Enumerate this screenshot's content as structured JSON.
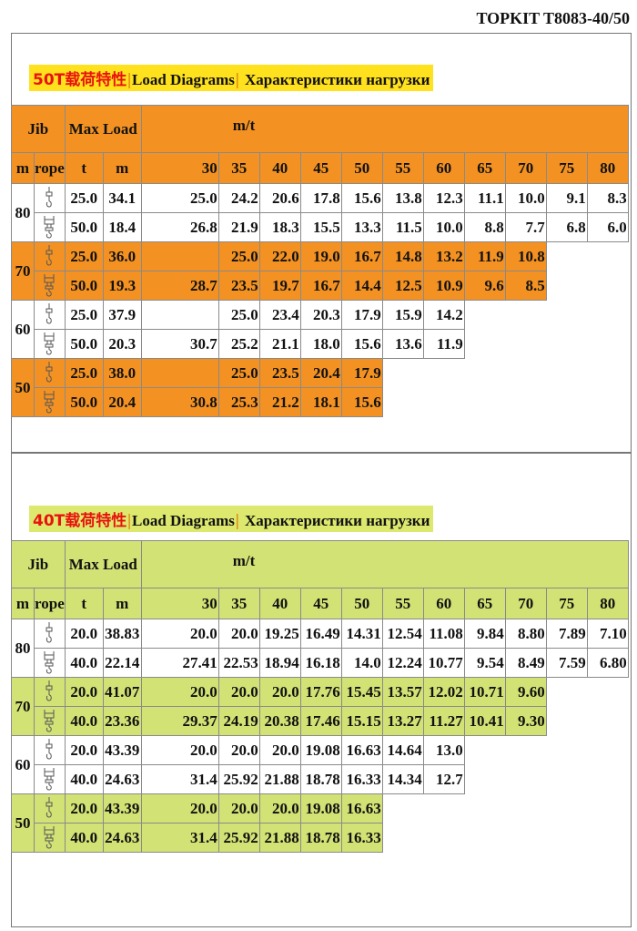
{
  "doc_title": "TOPKIT T8083-40/50",
  "header_labels": {
    "jib": "Jib",
    "max_load": "Max Load",
    "mt": "m/t",
    "m": "m",
    "rope": "rope",
    "t": "t",
    "m2": "m"
  },
  "radii": [
    "30",
    "35",
    "40",
    "45",
    "50",
    "55",
    "60",
    "65",
    "70",
    "75",
    "80"
  ],
  "colors": {
    "orange": "#F39223",
    "lime": "#D2E275",
    "yellow_band": "#FFE11E",
    "red": "#E8120E"
  },
  "tables": [
    {
      "heading_cn": "50T载荷特性",
      "heading_en": "Load Diagrams",
      "heading_ru": "Характеристики нагрузки",
      "groups": [
        {
          "jib": "80",
          "rows": [
            {
              "rope": "single-fall-hook-icon",
              "t": "25.0",
              "m": "34.1",
              "loads": [
                "25.0",
                "24.2",
                "20.6",
                "17.8",
                "15.6",
                "13.8",
                "12.3",
                "11.1",
                "10.0",
                "9.1",
                "8.3"
              ]
            },
            {
              "rope": "double-fall-hook-icon",
              "t": "50.0",
              "m": "18.4",
              "loads": [
                "26.8",
                "21.9",
                "18.3",
                "15.5",
                "13.3",
                "11.5",
                "10.0",
                "8.8",
                "7.7",
                "6.8",
                "6.0"
              ]
            }
          ]
        },
        {
          "jib": "70",
          "rows": [
            {
              "rope": "single-fall-hook-icon",
              "t": "25.0",
              "m": "36.0",
              "loads": [
                "",
                "25.0",
                "22.0",
                "19.0",
                "16.7",
                "14.8",
                "13.2",
                "11.9",
                "10.8"
              ]
            },
            {
              "rope": "double-fall-hook-icon",
              "t": "50.0",
              "m": "19.3",
              "loads": [
                "28.7",
                "23.5",
                "19.7",
                "16.7",
                "14.4",
                "12.5",
                "10.9",
                "9.6",
                "8.5"
              ]
            }
          ]
        },
        {
          "jib": "60",
          "rows": [
            {
              "rope": "single-fall-hook-icon",
              "t": "25.0",
              "m": "37.9",
              "loads": [
                "",
                "25.0",
                "23.4",
                "20.3",
                "17.9",
                "15.9",
                "14.2"
              ]
            },
            {
              "rope": "double-fall-hook-icon",
              "t": "50.0",
              "m": "20.3",
              "loads": [
                "30.7",
                "25.2",
                "21.1",
                "18.0",
                "15.6",
                "13.6",
                "11.9"
              ]
            }
          ]
        },
        {
          "jib": "50",
          "rows": [
            {
              "rope": "single-fall-hook-icon",
              "t": "25.0",
              "m": "38.0",
              "loads": [
                "",
                "25.0",
                "23.5",
                "20.4",
                "17.9"
              ]
            },
            {
              "rope": "double-fall-hook-icon",
              "t": "50.0",
              "m": "20.4",
              "loads": [
                "30.8",
                "25.3",
                "21.2",
                "18.1",
                "15.6"
              ]
            }
          ]
        }
      ]
    },
    {
      "heading_cn": "40T载荷特性",
      "heading_en": "Load Diagrams",
      "heading_ru": "Характеристики нагрузки",
      "groups": [
        {
          "jib": "80",
          "rows": [
            {
              "rope": "single-fall-hook-icon",
              "t": "20.0",
              "m": "38.83",
              "loads": [
                "20.0",
                "20.0",
                "19.25",
                "16.49",
                "14.31",
                "12.54",
                "11.08",
                "9.84",
                "8.80",
                "7.89",
                "7.10"
              ]
            },
            {
              "rope": "double-fall-hook-icon",
              "t": "40.0",
              "m": "22.14",
              "loads": [
                "27.41",
                "22.53",
                "18.94",
                "16.18",
                "14.0",
                "12.24",
                "10.77",
                "9.54",
                "8.49",
                "7.59",
                "6.80"
              ]
            }
          ]
        },
        {
          "jib": "70",
          "rows": [
            {
              "rope": "single-fall-hook-icon",
              "t": "20.0",
              "m": "41.07",
              "loads": [
                "20.0",
                "20.0",
                "20.0",
                "17.76",
                "15.45",
                "13.57",
                "12.02",
                "10.71",
                "9.60"
              ]
            },
            {
              "rope": "double-fall-hook-icon",
              "t": "40.0",
              "m": "23.36",
              "loads": [
                "29.37",
                "24.19",
                "20.38",
                "17.46",
                "15.15",
                "13.27",
                "11.27",
                "10.41",
                "9.30"
              ]
            }
          ]
        },
        {
          "jib": "60",
          "rows": [
            {
              "rope": "single-fall-hook-icon",
              "t": "20.0",
              "m": "43.39",
              "loads": [
                "20.0",
                "20.0",
                "20.0",
                "19.08",
                "16.63",
                "14.64",
                "13.0"
              ]
            },
            {
              "rope": "double-fall-hook-icon",
              "t": "40.0",
              "m": "24.63",
              "loads": [
                "31.4",
                "25.92",
                "21.88",
                "18.78",
                "16.33",
                "14.34",
                "12.7"
              ]
            }
          ]
        },
        {
          "jib": "50",
          "rows": [
            {
              "rope": "single-fall-hook-icon",
              "t": "20.0",
              "m": "43.39",
              "loads": [
                "20.0",
                "20.0",
                "20.0",
                "19.08",
                "16.63"
              ]
            },
            {
              "rope": "double-fall-hook-icon",
              "t": "40.0",
              "m": "24.63",
              "loads": [
                "31.4",
                "25.92",
                "21.88",
                "18.78",
                "16.33"
              ]
            }
          ]
        }
      ]
    }
  ]
}
